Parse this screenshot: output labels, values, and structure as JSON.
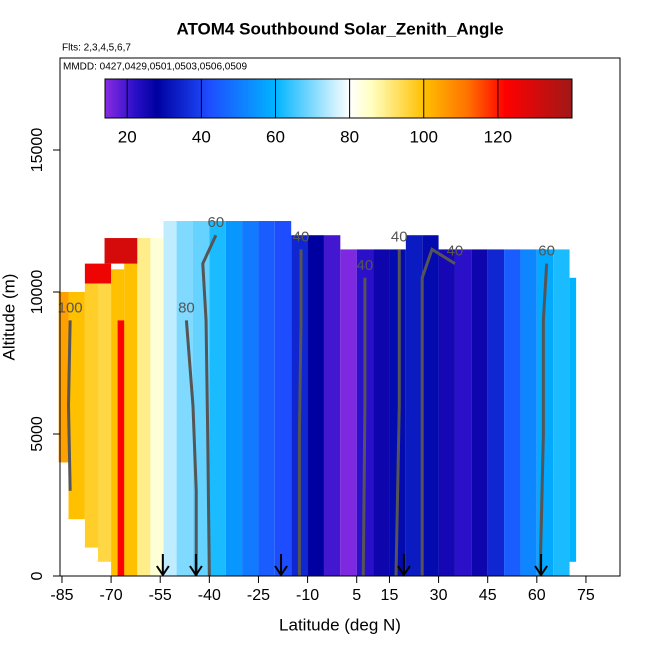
{
  "chart_data": {
    "type": "heatmap",
    "title": "ATOM4 Southbound Solar_Zenith_Angle",
    "subtitle": "Flts: 2,3,4,5,6,7",
    "annotation": "MMDD: 0427,0429,0501,0503,0506,0509",
    "x_label": "Latitude (deg N)",
    "y_label": "Altitude (m)",
    "xlim": [
      -85.6,
      85.4
    ],
    "ylim": [
      0,
      18240
    ],
    "xticks": [
      -85,
      -70,
      -55,
      -40,
      -25,
      -10,
      5,
      15,
      30,
      45,
      60,
      75
    ],
    "yticks": [
      0,
      5000,
      10000,
      15000
    ],
    "clim": [
      14,
      140
    ],
    "cticks": [
      20,
      40,
      60,
      80,
      100,
      120
    ],
    "colorscale": [
      {
        "value": 14,
        "color": "#8a2be2"
      },
      {
        "value": 22,
        "color": "#2a10c8"
      },
      {
        "value": 28,
        "color": "#0000a0"
      },
      {
        "value": 42,
        "color": "#1e4cff"
      },
      {
        "value": 60,
        "color": "#00b4ff"
      },
      {
        "value": 80,
        "color": "#ffffff"
      },
      {
        "value": 86,
        "color": "#ffffc0"
      },
      {
        "value": 100,
        "color": "#ffc000"
      },
      {
        "value": 112,
        "color": "#ff7000"
      },
      {
        "value": 122,
        "color": "#ff0000"
      },
      {
        "value": 140,
        "color": "#a01818"
      }
    ],
    "cells": [
      {
        "x0": -86,
        "x1": -83,
        "y0": 4000,
        "y1": 10000,
        "value": 105
      },
      {
        "x0": -83,
        "x1": -78,
        "y0": 2000,
        "y1": 10000,
        "value": 100
      },
      {
        "x0": -78,
        "x1": -74,
        "y0": 1000,
        "y1": 10300,
        "value": 97
      },
      {
        "x0": -74,
        "x1": -70,
        "y0": 500,
        "y1": 10500,
        "value": 95
      },
      {
        "x0": -70,
        "x1": -66,
        "y0": 0,
        "y1": 10800,
        "value": 100
      },
      {
        "x0": -66,
        "x1": -62,
        "y0": 0,
        "y1": 11500,
        "value": 100
      },
      {
        "x0": -62,
        "x1": -58,
        "y0": 0,
        "y1": 11900,
        "value": 90
      },
      {
        "x0": -58,
        "x1": -54,
        "y0": 0,
        "y1": 11900,
        "value": 84
      },
      {
        "x0": -54,
        "x1": -50,
        "y0": 0,
        "y1": 12500,
        "value": 75
      },
      {
        "x0": -50,
        "x1": -45,
        "y0": 0,
        "y1": 12500,
        "value": 70
      },
      {
        "x0": -45,
        "x1": -40,
        "y0": 0,
        "y1": 12500,
        "value": 68
      },
      {
        "x0": -40,
        "x1": -35,
        "y0": 0,
        "y1": 12500,
        "value": 62
      },
      {
        "x0": -35,
        "x1": -30,
        "y0": 0,
        "y1": 12500,
        "value": 55
      },
      {
        "x0": -30,
        "x1": -25,
        "y0": 0,
        "y1": 12500,
        "value": 50
      },
      {
        "x0": -25,
        "x1": -20,
        "y0": 0,
        "y1": 12500,
        "value": 45
      },
      {
        "x0": -20,
        "x1": -15,
        "y0": 0,
        "y1": 12500,
        "value": 42
      },
      {
        "x0": -15,
        "x1": -10,
        "y0": 0,
        "y1": 12000,
        "value": 35
      },
      {
        "x0": -10,
        "x1": -5,
        "y0": 0,
        "y1": 12000,
        "value": 28
      },
      {
        "x0": -5,
        "x1": 0,
        "y0": 0,
        "y1": 12000,
        "value": 20
      },
      {
        "x0": 0,
        "x1": 5,
        "y0": 0,
        "y1": 11500,
        "value": 15
      },
      {
        "x0": 5,
        "x1": 10,
        "y0": 0,
        "y1": 11500,
        "value": 22
      },
      {
        "x0": 10,
        "x1": 15,
        "y0": 0,
        "y1": 11500,
        "value": 26
      },
      {
        "x0": 15,
        "x1": 20,
        "y0": 0,
        "y1": 11500,
        "value": 30
      },
      {
        "x0": 20,
        "x1": 25,
        "y0": 0,
        "y1": 12000,
        "value": 33
      },
      {
        "x0": 25,
        "x1": 30,
        "y0": 0,
        "y1": 12000,
        "value": 30
      },
      {
        "x0": 30,
        "x1": 35,
        "y0": 0,
        "y1": 11500,
        "value": 25
      },
      {
        "x0": 35,
        "x1": 40,
        "y0": 0,
        "y1": 11500,
        "value": 22
      },
      {
        "x0": 40,
        "x1": 45,
        "y0": 0,
        "y1": 11500,
        "value": 26
      },
      {
        "x0": 45,
        "x1": 50,
        "y0": 0,
        "y1": 11500,
        "value": 35
      },
      {
        "x0": 50,
        "x1": 55,
        "y0": 0,
        "y1": 11500,
        "value": 45
      },
      {
        "x0": 55,
        "x1": 60,
        "y0": 0,
        "y1": 11500,
        "value": 52
      },
      {
        "x0": 60,
        "x1": 65,
        "y0": 0,
        "y1": 11500,
        "value": 58
      },
      {
        "x0": 65,
        "x1": 70,
        "y0": 0,
        "y1": 11500,
        "value": 62
      },
      {
        "x0": 70,
        "x1": 72,
        "y0": 500,
        "y1": 10500,
        "value": 60
      },
      {
        "x0": -78,
        "x1": -70,
        "y0": 10300,
        "y1": 11000,
        "value": 125
      },
      {
        "x0": -72,
        "x1": -62,
        "y0": 11000,
        "y1": 11900,
        "value": 130
      },
      {
        "x0": -68,
        "x1": -66,
        "y0": 0,
        "y1": 9000,
        "value": 122
      }
    ],
    "contours": [
      {
        "value": 100,
        "x": [
          -82.5,
          -83,
          -82.5
        ],
        "y": [
          3000,
          6000,
          9000
        ]
      },
      {
        "value": 80,
        "x": [
          -44,
          -44,
          -45,
          -47
        ],
        "y": [
          0,
          3000,
          6000,
          9000
        ]
      },
      {
        "value": 60,
        "x": [
          -40,
          -40.5,
          -41,
          -42,
          -38
        ],
        "y": [
          0,
          5000,
          9000,
          11000,
          12000
        ]
      },
      {
        "value": 40,
        "x": [
          -12.5,
          -12.5,
          -12,
          -12
        ],
        "y": [
          0,
          5000,
          9000,
          11500
        ]
      },
      {
        "value": 40,
        "x": [
          7,
          7.5,
          7.5
        ],
        "y": [
          0,
          6000,
          10500
        ]
      },
      {
        "value": 40,
        "x": [
          17,
          18,
          18
        ],
        "y": [
          0,
          6000,
          11500
        ]
      },
      {
        "value": 40,
        "x": [
          25,
          25,
          25,
          28,
          35
        ],
        "y": [
          0,
          5000,
          10500,
          11500,
          11000
        ]
      },
      {
        "value": 60,
        "x": [
          61,
          62,
          62,
          63
        ],
        "y": [
          0,
          5000,
          9000,
          11000
        ]
      }
    ],
    "markers": [
      -54.2,
      -44.1,
      -18.1,
      19.4,
      61.3
    ]
  }
}
